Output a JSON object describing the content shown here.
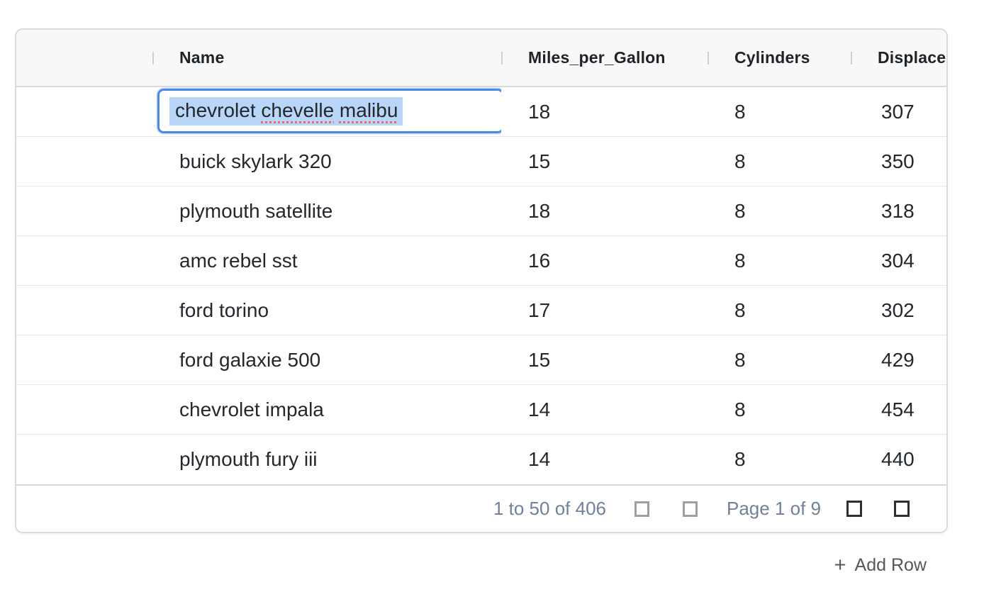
{
  "table": {
    "columns": [
      {
        "label": ""
      },
      {
        "label": "Name"
      },
      {
        "label": "Miles_per_Gallon"
      },
      {
        "label": "Cylinders"
      },
      {
        "label": "Displacement"
      }
    ],
    "rows": [
      {
        "name": "chevrolet chevelle malibu",
        "mpg": "18",
        "cylinders": "8",
        "displacement": "307"
      },
      {
        "name": "buick skylark 320",
        "mpg": "15",
        "cylinders": "8",
        "displacement": "350"
      },
      {
        "name": "plymouth satellite",
        "mpg": "18",
        "cylinders": "8",
        "displacement": "318"
      },
      {
        "name": "amc rebel sst",
        "mpg": "16",
        "cylinders": "8",
        "displacement": "304"
      },
      {
        "name": "ford torino",
        "mpg": "17",
        "cylinders": "8",
        "displacement": "302"
      },
      {
        "name": "ford galaxie 500",
        "mpg": "15",
        "cylinders": "8",
        "displacement": "429"
      },
      {
        "name": "chevrolet impala",
        "mpg": "14",
        "cylinders": "8",
        "displacement": "454"
      },
      {
        "name": "plymouth fury iii",
        "mpg": "14",
        "cylinders": "8",
        "displacement": "440"
      }
    ]
  },
  "editor": {
    "value": "chevrolet chevelle malibu",
    "parts": [
      {
        "text": "chevrolet ",
        "misspelled": false
      },
      {
        "text": "chevelle",
        "misspelled": true
      },
      {
        "text": " ",
        "misspelled": false
      },
      {
        "text": "malibu",
        "misspelled": true
      }
    ]
  },
  "pagination": {
    "row_summary": "1 to 50 of 406",
    "page_summary": "Page 1 of 9"
  },
  "footer": {
    "add_row_icon": "+",
    "add_row_label": "Add Row"
  },
  "colors": {
    "editor_border": "#4a8ae4",
    "selection": "#b9d5f8",
    "spellcheck": "#ec6c63",
    "pagination_text": "#71809b",
    "header_bg": "#f8f8f8"
  }
}
